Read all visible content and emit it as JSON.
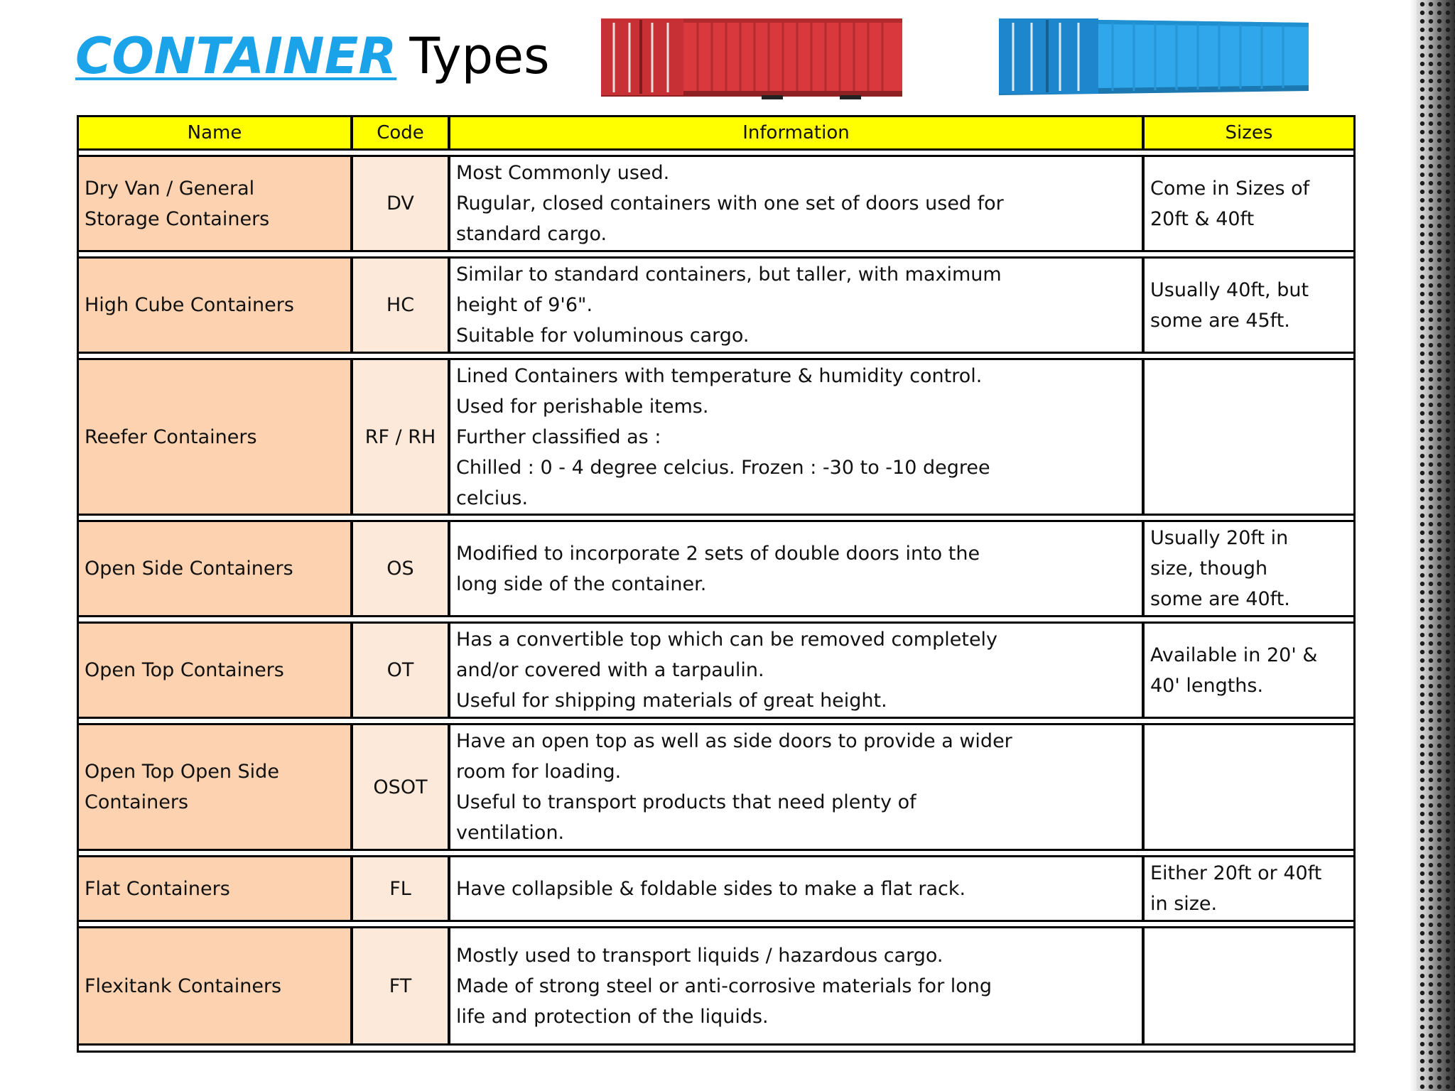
{
  "title": {
    "emphasis": "CONTAINER",
    "rest": "Types"
  },
  "images": [
    {
      "name": "red-shipping-container",
      "color": "#d9383d"
    },
    {
      "name": "blue-shipping-container",
      "color": "#2fa7ea"
    }
  ],
  "table": {
    "headers": {
      "name": "Name",
      "code": "Code",
      "information": "Information",
      "sizes": "Sizes"
    },
    "rows": [
      {
        "name": [
          "Dry Van / General",
          "Storage Containers"
        ],
        "code": "DV",
        "info": [
          "Most Commonly used.",
          "Rugular, closed containers with one set of doors used for",
          "standard cargo."
        ],
        "sizes": [
          "Come in Sizes of",
          "20ft & 40ft"
        ]
      },
      {
        "name": [
          "High Cube Containers"
        ],
        "code": "HC",
        "info": [
          "Similar to standard containers, but taller, with maximum",
          "height of 9'6\".",
          "Suitable for voluminous cargo."
        ],
        "sizes": [
          "Usually 40ft, but",
          "some are 45ft."
        ]
      },
      {
        "name": [
          "Reefer Containers"
        ],
        "code": "RF / RH",
        "info": [
          "Lined Containers with temperature & humidity control.",
          "Used for perishable items.",
          "Further classified as :",
          "Chilled : 0 - 4 degree celcius. Frozen : -30 to -10 degree",
          "celcius."
        ],
        "sizes": []
      },
      {
        "name": [
          "Open Side Containers"
        ],
        "code": "OS",
        "info": [
          "Modified to incorporate 2 sets of double doors into the",
          "long side of the container."
        ],
        "sizes": [
          "Usually 20ft in",
          "size, though",
          "some are 40ft."
        ]
      },
      {
        "name": [
          "Open Top Containers"
        ],
        "code": "OT",
        "info": [
          "Has a convertible top which can be removed completely",
          "and/or covered with a tarpaulin.",
          "Useful for shipping materials of great height."
        ],
        "sizes": [
          "Available in 20' &",
          "40' lengths."
        ]
      },
      {
        "name": [
          "Open Top Open Side",
          "Containers"
        ],
        "code": "OSOT",
        "info": [
          "Have an open top as well as side doors to provide a wider",
          "room for loading.",
          "Useful to transport products that need plenty of",
          "ventilation."
        ],
        "sizes": []
      },
      {
        "name": [
          "Flat Containers"
        ],
        "code": "FL",
        "info": [
          "Have collapsible & foldable sides to make a flat rack."
        ],
        "sizes": [
          "Either 20ft or 40ft",
          "in size."
        ]
      },
      {
        "name": [
          "Flexitank Containers"
        ],
        "code": "FT",
        "info": [
          "Mostly used to transport liquids / hazardous cargo.",
          "Made of strong steel or anti-corrosive materials for long",
          "life and protection of the liquids."
        ],
        "sizes": []
      }
    ]
  }
}
